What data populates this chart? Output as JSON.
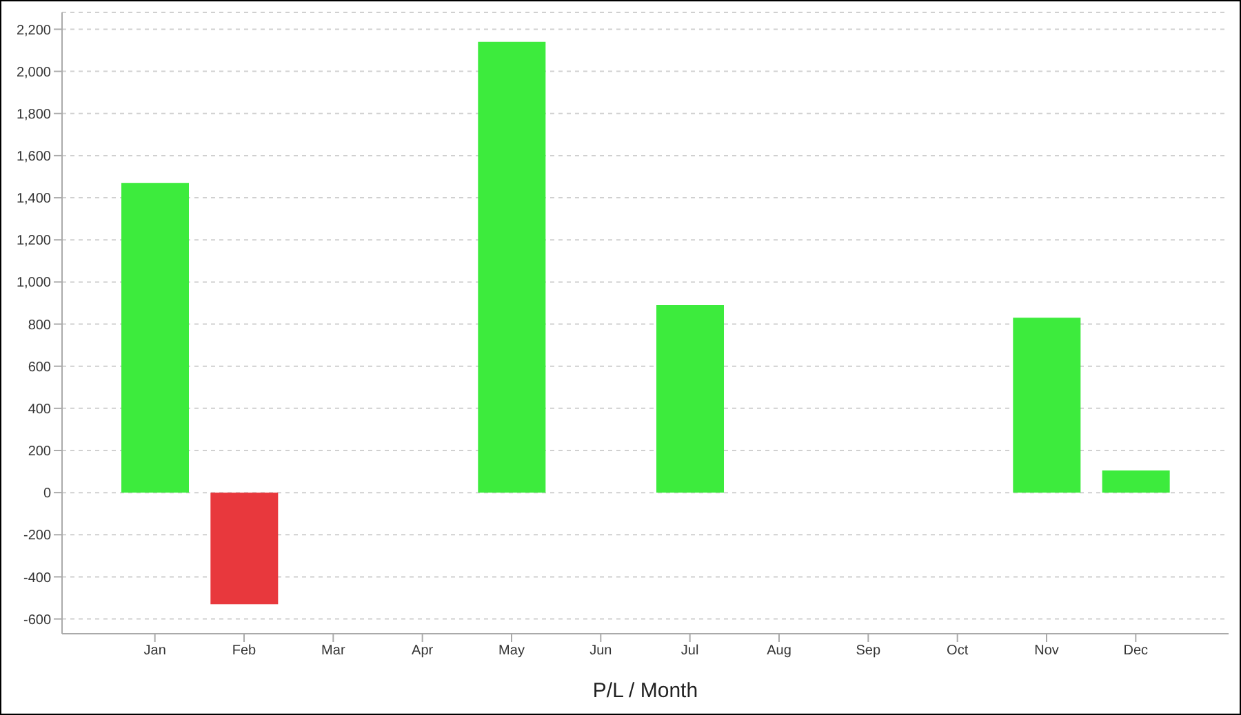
{
  "chart_data": {
    "type": "bar",
    "xlabel": "P/L / Month",
    "categories": [
      "Jan",
      "Feb",
      "Mar",
      "Apr",
      "May",
      "Jun",
      "Jul",
      "Aug",
      "Sep",
      "Oct",
      "Nov",
      "Dec"
    ],
    "values": [
      1470,
      -530,
      0,
      0,
      2140,
      0,
      890,
      0,
      0,
      0,
      830,
      105
    ],
    "colors": [
      "#3deb3d",
      "#e8383d",
      "#3deb3d",
      "#3deb3d",
      "#3deb3d",
      "#3deb3d",
      "#3deb3d",
      "#3deb3d",
      "#3deb3d",
      "#3deb3d",
      "#3deb3d",
      "#3deb3d"
    ],
    "ylim": [
      -670,
      2280
    ],
    "yticks": [
      {
        "value": -600,
        "label": "-600"
      },
      {
        "value": -400,
        "label": "-400"
      },
      {
        "value": -200,
        "label": "-200"
      },
      {
        "value": 0,
        "label": "0"
      },
      {
        "value": 200,
        "label": "200"
      },
      {
        "value": 400,
        "label": "400"
      },
      {
        "value": 600,
        "label": "600"
      },
      {
        "value": 800,
        "label": "800"
      },
      {
        "value": 1000,
        "label": "1,000"
      },
      {
        "value": 1200,
        "label": "1,200"
      },
      {
        "value": 1400,
        "label": "1,400"
      },
      {
        "value": 1600,
        "label": "1,600"
      },
      {
        "value": 1800,
        "label": "1,800"
      },
      {
        "value": 2000,
        "label": "2,000"
      },
      {
        "value": 2200,
        "label": "2,200"
      }
    ],
    "grid": "y"
  }
}
